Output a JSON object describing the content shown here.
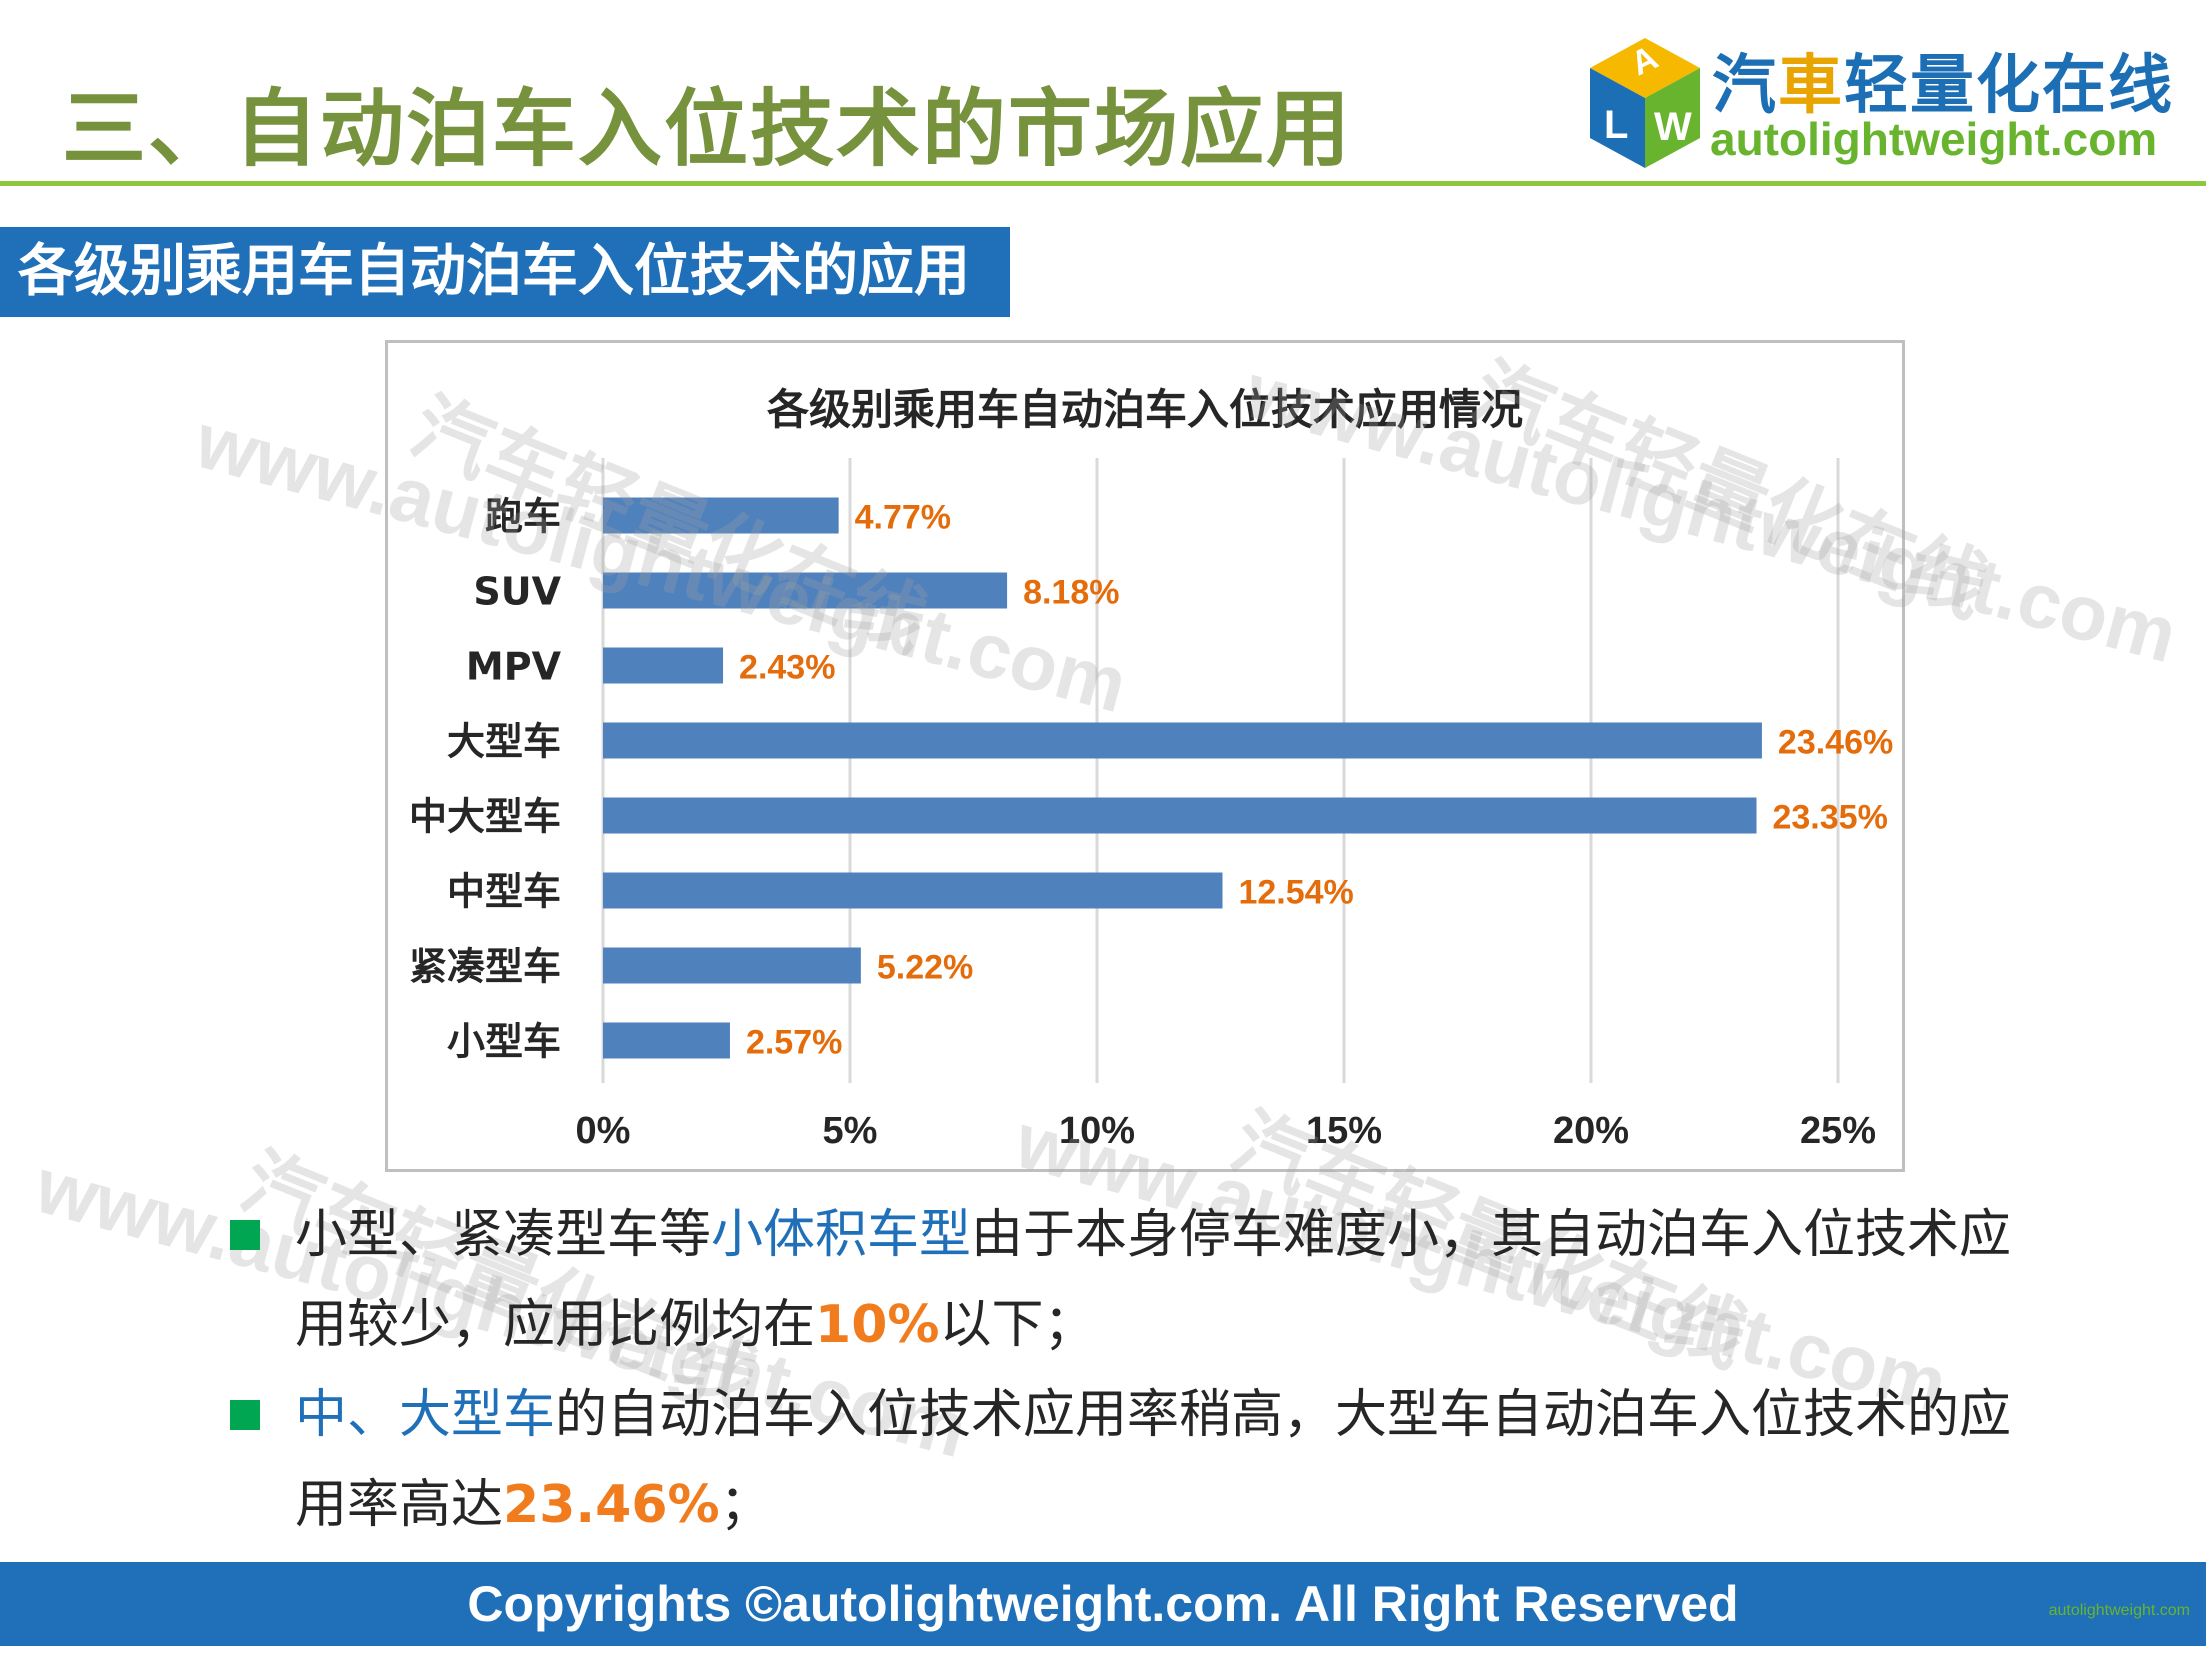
{
  "header": {
    "title": "三、自动泊车入位技术的市场应用",
    "logo_cn_1": "汽",
    "logo_cn_2": "車",
    "logo_cn_3": "轻量化在线",
    "logo_en": "autolightweight.com",
    "logo_mark": "ALW"
  },
  "section_tab": "各级别乘用车自动泊车入位技术的应用",
  "chart_data": {
    "type": "bar",
    "orientation": "horizontal",
    "title": "各级别乘用车自动泊车入位技术应用情况",
    "categories": [
      "跑车",
      "SUV",
      "MPV",
      "大型车",
      "中大型车",
      "中型车",
      "紧凑型车",
      "小型车"
    ],
    "values": [
      4.77,
      8.18,
      2.43,
      23.46,
      23.35,
      12.54,
      5.22,
      2.57
    ],
    "data_labels": [
      "4.77%",
      "8.18%",
      "2.43%",
      "23.46%",
      "23.35%",
      "12.54%",
      "5.22%",
      "2.57%"
    ],
    "xlim": [
      0,
      25
    ],
    "x_ticks": [
      "0%",
      "5%",
      "10%",
      "15%",
      "20%",
      "25%"
    ],
    "grid": "vertical",
    "colors": {
      "bar": "#4f81bd",
      "label": "#e46c0a",
      "grid": "#d9d9d9"
    }
  },
  "watermarks": [
    "www.autolightweight.com",
    "汽车轻量化在线"
  ],
  "bullets": [
    {
      "parts": [
        "小型、紧凑型车等",
        "小体积车型",
        "由于本身停车难度小，其自动泊车入位技术应用较少，应用比例均在",
        "10%",
        "以下；"
      ]
    },
    {
      "parts": [
        "中、大型车",
        "的自动泊车入位技术应用率稍高，大型车自动泊车入位技术的应用率高达",
        "23.46%",
        "；"
      ]
    }
  ],
  "footer": {
    "copyright": "Copyrights ©autolightweight.com. All Right Reserved",
    "mini_logo": "autolightweight.com"
  },
  "colors": {
    "title_green": "#76923c",
    "rule_green": "#8dc63f",
    "brand_blue": "#1f70b8",
    "highlight_orange": "#f07c1e",
    "bullet_green": "#00a651"
  }
}
